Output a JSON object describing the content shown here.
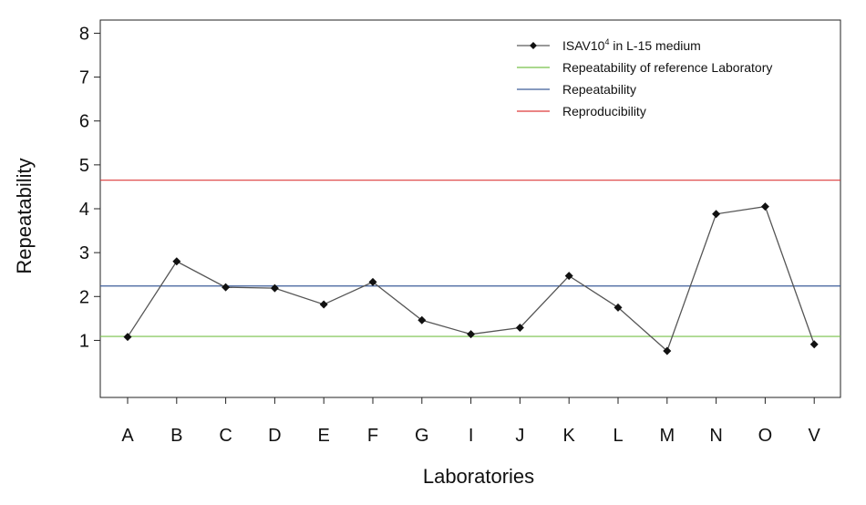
{
  "chart_data": {
    "type": "line",
    "xlabel": "Laboratories",
    "ylabel": "Repeatability",
    "categories": [
      "A",
      "B",
      "C",
      "D",
      "E",
      "F",
      "G",
      "I",
      "J",
      "K",
      "L",
      "M",
      "N",
      "O",
      "V"
    ],
    "ylim": [
      -0.3,
      8.3
    ],
    "yticks": [
      "1",
      "2",
      "3",
      "4",
      "5",
      "6",
      "7",
      "8"
    ],
    "series": [
      {
        "name_main": "ISAV10",
        "name_sup": "4",
        "name_tail": " in L-15 medium",
        "color": "#333333",
        "values": [
          1.08,
          2.8,
          2.21,
          2.19,
          1.82,
          2.33,
          1.46,
          1.14,
          1.29,
          2.47,
          1.75,
          0.76,
          3.88,
          4.05,
          0.91
        ]
      }
    ],
    "reference_lines": [
      {
        "name": "Repeatability of reference Laboratory",
        "value": 1.09,
        "color": "#77c04a"
      },
      {
        "name": "Repeatability",
        "value": 2.24,
        "color": "#3d5d99"
      },
      {
        "name": "Reproducibility",
        "value": 4.65,
        "color": "#dd3a3a"
      }
    ],
    "legend_position": "top-right",
    "grid": false
  }
}
